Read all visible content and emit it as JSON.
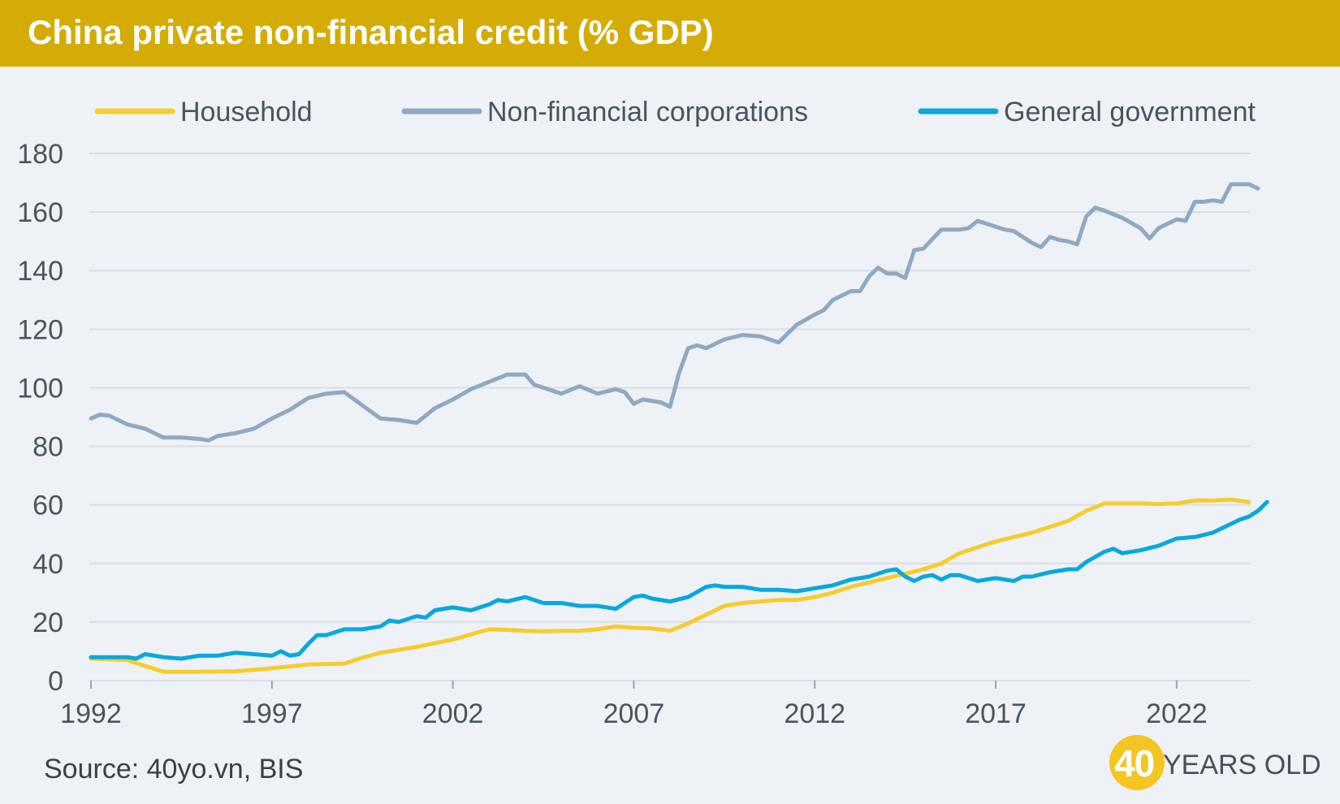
{
  "title": "China private non-financial credit (% GDP)",
  "source": "Source: 40yo.vn, BIS",
  "logo": {
    "number": "40",
    "text": "YEARS OLD"
  },
  "colors": {
    "title_bar": "#d4ac05",
    "household": "#f5cd2c",
    "corporations": "#8fa9c2",
    "government": "#0aa8dc",
    "grid": "#d9dee3",
    "background": "#eef2f6"
  },
  "chart_data": {
    "type": "line",
    "title": "China private non-financial credit (% GDP)",
    "xlabel": "",
    "ylabel": "",
    "xlim": [
      1992,
      2024
    ],
    "ylim": [
      0,
      180
    ],
    "yticks": [
      "0",
      "20",
      "40",
      "60",
      "80",
      "100",
      "120",
      "140",
      "160",
      "180"
    ],
    "xticks": [
      "1992",
      "1997",
      "2002",
      "2007",
      "2012",
      "2017",
      "2022"
    ],
    "legend_position": "top",
    "series": [
      {
        "name": "Household",
        "color": "#f5cd2c",
        "points": [
          [
            1992,
            7.5
          ],
          [
            1993,
            7.0
          ],
          [
            1993.5,
            5.0
          ],
          [
            1994,
            3.0
          ],
          [
            1995,
            3.0
          ],
          [
            1996,
            3.2
          ],
          [
            1997,
            4.2
          ],
          [
            1998,
            5.5
          ],
          [
            1999,
            5.8
          ],
          [
            1999.5,
            7.8
          ],
          [
            2000,
            9.5
          ],
          [
            2001,
            11.5
          ],
          [
            2002,
            14.0
          ],
          [
            2003,
            17.5
          ],
          [
            2003.5,
            17.3
          ],
          [
            2004,
            17.0
          ],
          [
            2004.5,
            16.8
          ],
          [
            2005,
            17.0
          ],
          [
            2005.5,
            17.0
          ],
          [
            2006,
            17.5
          ],
          [
            2006.5,
            18.5
          ],
          [
            2007,
            18.0
          ],
          [
            2007.5,
            17.8
          ],
          [
            2008,
            17.0
          ],
          [
            2008.5,
            19.5
          ],
          [
            2009,
            22.5
          ],
          [
            2009.5,
            25.5
          ],
          [
            2010,
            26.5
          ],
          [
            2010.5,
            27.0
          ],
          [
            2011,
            27.5
          ],
          [
            2011.5,
            27.5
          ],
          [
            2012,
            28.5
          ],
          [
            2012.5,
            30.0
          ],
          [
            2013,
            32.0
          ],
          [
            2013.5,
            33.5
          ],
          [
            2014,
            35.0
          ],
          [
            2014.5,
            36.5
          ],
          [
            2015,
            38.0
          ],
          [
            2015.5,
            40.0
          ],
          [
            2016,
            43.5
          ],
          [
            2016.5,
            45.5
          ],
          [
            2017,
            47.5
          ],
          [
            2017.5,
            49.0
          ],
          [
            2018,
            50.5
          ],
          [
            2018.5,
            52.5
          ],
          [
            2019,
            54.5
          ],
          [
            2019.5,
            58.0
          ],
          [
            2020,
            60.5
          ],
          [
            2020.5,
            60.5
          ],
          [
            2021,
            60.5
          ],
          [
            2021.5,
            60.3
          ],
          [
            2022,
            60.5
          ],
          [
            2022.5,
            61.5
          ],
          [
            2023,
            61.5
          ],
          [
            2023.5,
            61.8
          ],
          [
            2024,
            61.0
          ]
        ]
      },
      {
        "name": "Non-financial corporations",
        "color": "#8fa9c2",
        "points": [
          [
            1992,
            89.5
          ],
          [
            1992.25,
            90.8
          ],
          [
            1992.5,
            90.5
          ],
          [
            1993,
            87.5
          ],
          [
            1993.5,
            86.0
          ],
          [
            1994,
            83.0
          ],
          [
            1994.5,
            83.0
          ],
          [
            1995,
            82.5
          ],
          [
            1995.25,
            82.0
          ],
          [
            1995.5,
            83.5
          ],
          [
            1996,
            84.5
          ],
          [
            1996.5,
            86.0
          ],
          [
            1997,
            89.5
          ],
          [
            1997.5,
            92.5
          ],
          [
            1998,
            96.5
          ],
          [
            1998.5,
            98.0
          ],
          [
            1999,
            98.5
          ],
          [
            1999.5,
            94.0
          ],
          [
            2000,
            89.5
          ],
          [
            2000.5,
            89.0
          ],
          [
            2001,
            88.0
          ],
          [
            2001.5,
            93.0
          ],
          [
            2002,
            96.0
          ],
          [
            2002.5,
            99.5
          ],
          [
            2003,
            102.0
          ],
          [
            2003.5,
            104.5
          ],
          [
            2004,
            104.5
          ],
          [
            2004.25,
            101.0
          ],
          [
            2004.75,
            99.0
          ],
          [
            2005,
            98.0
          ],
          [
            2005.5,
            100.5
          ],
          [
            2006,
            98.0
          ],
          [
            2006.5,
            99.5
          ],
          [
            2006.75,
            98.5
          ],
          [
            2007,
            94.5
          ],
          [
            2007.25,
            96.0
          ],
          [
            2007.75,
            95.0
          ],
          [
            2008,
            93.5
          ],
          [
            2008.25,
            105.0
          ],
          [
            2008.5,
            113.5
          ],
          [
            2008.75,
            114.5
          ],
          [
            2009,
            113.5
          ],
          [
            2009.5,
            116.5
          ],
          [
            2010,
            118.0
          ],
          [
            2010.5,
            117.5
          ],
          [
            2011,
            115.5
          ],
          [
            2011.5,
            121.5
          ],
          [
            2012,
            125.0
          ],
          [
            2012.25,
            126.5
          ],
          [
            2012.5,
            130.0
          ],
          [
            2013,
            133.0
          ],
          [
            2013.25,
            133.0
          ],
          [
            2013.5,
            138.0
          ],
          [
            2013.75,
            141.0
          ],
          [
            2014,
            139.0
          ],
          [
            2014.25,
            139.0
          ],
          [
            2014.5,
            137.5
          ],
          [
            2014.75,
            147.0
          ],
          [
            2015,
            147.5
          ],
          [
            2015.5,
            154.0
          ],
          [
            2016,
            154.0
          ],
          [
            2016.25,
            154.5
          ],
          [
            2016.5,
            157.0
          ],
          [
            2016.75,
            156.0
          ],
          [
            2017,
            155.0
          ],
          [
            2017.25,
            154.0
          ],
          [
            2017.5,
            153.5
          ],
          [
            2018,
            149.5
          ],
          [
            2018.25,
            148.0
          ],
          [
            2018.5,
            151.5
          ],
          [
            2018.75,
            150.5
          ],
          [
            2019,
            150.0
          ],
          [
            2019.25,
            149.0
          ],
          [
            2019.5,
            158.5
          ],
          [
            2019.75,
            161.5
          ],
          [
            2020,
            160.5
          ],
          [
            2020.5,
            158.0
          ],
          [
            2021,
            154.5
          ],
          [
            2021.25,
            151.0
          ],
          [
            2021.5,
            154.5
          ],
          [
            2022,
            157.5
          ],
          [
            2022.25,
            157.0
          ],
          [
            2022.5,
            163.5
          ],
          [
            2022.75,
            163.5
          ],
          [
            2023,
            164.0
          ],
          [
            2023.25,
            163.5
          ],
          [
            2023.5,
            169.5
          ],
          [
            2023.75,
            169.5
          ],
          [
            2024,
            169.5
          ],
          [
            2024.25,
            168.0
          ]
        ]
      },
      {
        "name": "General government",
        "color": "#0aa8dc",
        "points": [
          [
            1992,
            8.0
          ],
          [
            1992.5,
            8.0
          ],
          [
            1993,
            8.0
          ],
          [
            1993.25,
            7.5
          ],
          [
            1993.5,
            9.0
          ],
          [
            1994,
            8.0
          ],
          [
            1994.5,
            7.5
          ],
          [
            1995,
            8.5
          ],
          [
            1995.5,
            8.5
          ],
          [
            1996,
            9.5
          ],
          [
            1996.5,
            9.0
          ],
          [
            1997,
            8.5
          ],
          [
            1997.25,
            10.0
          ],
          [
            1997.5,
            8.5
          ],
          [
            1997.75,
            9.0
          ],
          [
            1998,
            12.5
          ],
          [
            1998.25,
            15.5
          ],
          [
            1998.5,
            15.5
          ],
          [
            1999,
            17.5
          ],
          [
            1999.5,
            17.5
          ],
          [
            2000,
            18.5
          ],
          [
            2000.25,
            20.5
          ],
          [
            2000.5,
            20.0
          ],
          [
            2001,
            22.0
          ],
          [
            2001.25,
            21.5
          ],
          [
            2001.5,
            24.0
          ],
          [
            2002,
            25.0
          ],
          [
            2002.5,
            24.0
          ],
          [
            2002.75,
            25.0
          ],
          [
            2003,
            26.0
          ],
          [
            2003.25,
            27.5
          ],
          [
            2003.5,
            27.0
          ],
          [
            2004,
            28.5
          ],
          [
            2004.5,
            26.5
          ],
          [
            2005,
            26.5
          ],
          [
            2005.5,
            25.5
          ],
          [
            2006,
            25.5
          ],
          [
            2006.5,
            24.5
          ],
          [
            2007,
            28.5
          ],
          [
            2007.25,
            29.0
          ],
          [
            2007.5,
            28.0
          ],
          [
            2008,
            27.0
          ],
          [
            2008.5,
            28.5
          ],
          [
            2009,
            32.0
          ],
          [
            2009.25,
            32.5
          ],
          [
            2009.5,
            32.0
          ],
          [
            2010,
            32.0
          ],
          [
            2010.5,
            31.0
          ],
          [
            2011,
            31.0
          ],
          [
            2011.5,
            30.5
          ],
          [
            2012,
            31.5
          ],
          [
            2012.5,
            32.5
          ],
          [
            2013,
            34.5
          ],
          [
            2013.5,
            35.5
          ],
          [
            2014,
            37.5
          ],
          [
            2014.25,
            38.0
          ],
          [
            2014.5,
            35.5
          ],
          [
            2014.75,
            34.0
          ],
          [
            2015,
            35.5
          ],
          [
            2015.25,
            36.0
          ],
          [
            2015.5,
            34.5
          ],
          [
            2015.75,
            36.0
          ],
          [
            2016,
            36.0
          ],
          [
            2016.5,
            34.0
          ],
          [
            2017,
            35.0
          ],
          [
            2017.5,
            34.0
          ],
          [
            2017.75,
            35.5
          ],
          [
            2018,
            35.5
          ],
          [
            2018.5,
            37.0
          ],
          [
            2019,
            38.0
          ],
          [
            2019.25,
            38.0
          ],
          [
            2019.5,
            40.5
          ],
          [
            2020,
            44.0
          ],
          [
            2020.25,
            45.0
          ],
          [
            2020.5,
            43.5
          ],
          [
            2021,
            44.5
          ],
          [
            2021.5,
            46.0
          ],
          [
            2022,
            48.5
          ],
          [
            2022.5,
            49.0
          ],
          [
            2023,
            50.5
          ],
          [
            2023.5,
            53.5
          ],
          [
            2023.75,
            55.0
          ],
          [
            2024,
            56.0
          ],
          [
            2024.25,
            58.0
          ],
          [
            2024.5,
            61.0
          ]
        ]
      }
    ]
  }
}
